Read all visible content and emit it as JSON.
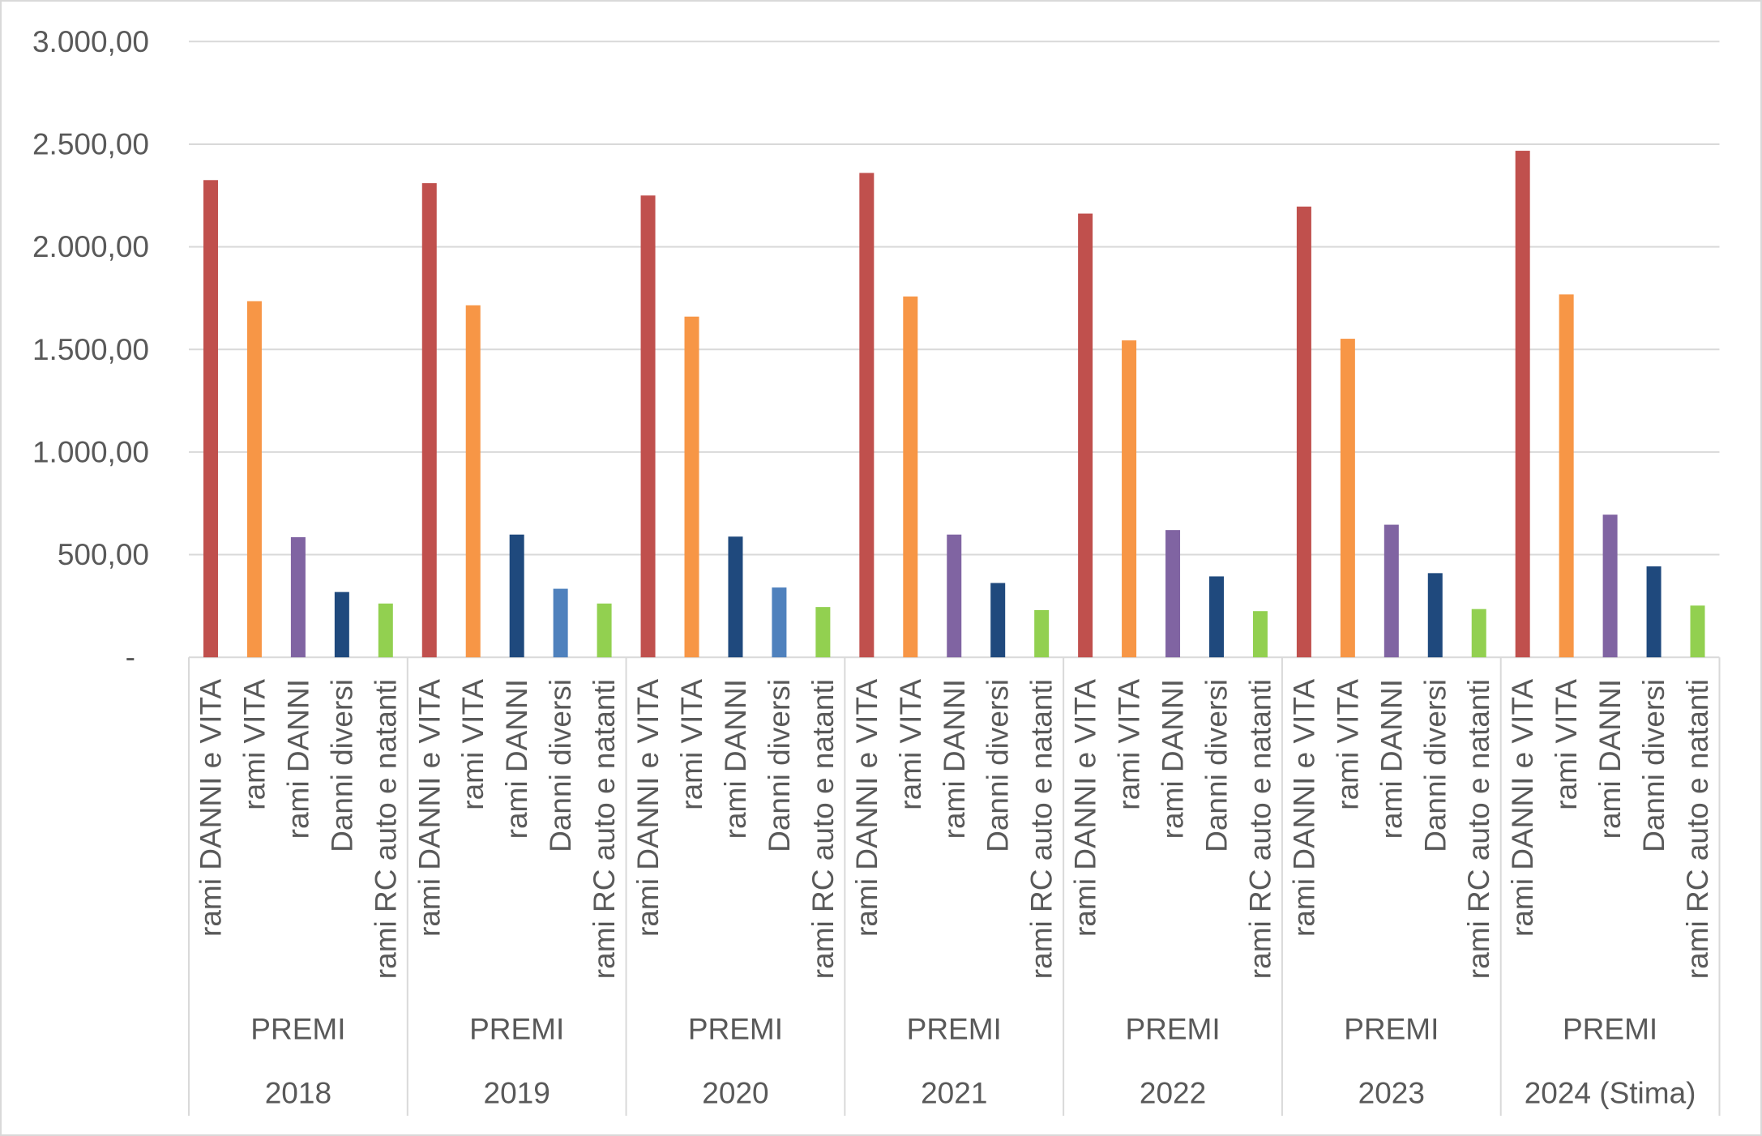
{
  "chart_data": {
    "type": "bar",
    "ylim": [
      0,
      3000
    ],
    "grid": true,
    "legend": "none",
    "y_ticks": [
      {
        "value": 0,
        "label": "-"
      },
      {
        "value": 500,
        "label": "500,00"
      },
      {
        "value": 1000,
        "label": "1.000,00"
      },
      {
        "value": 1500,
        "label": "1.500,00"
      },
      {
        "value": 2000,
        "label": "2.000,00"
      },
      {
        "value": 2500,
        "label": "2.500,00"
      },
      {
        "value": 3000,
        "label": "3.000,00"
      }
    ],
    "categories": [
      "rami DANNI e VITA",
      "rami VITA",
      "rami DANNI",
      "Danni diversi",
      "rami RC auto e natanti"
    ],
    "groups": [
      {
        "year": "2018",
        "label": "PREMI",
        "values": [
          2325,
          1735,
          585,
          318,
          262
        ],
        "colors": [
          "#C0504D",
          "#F79646",
          "#8064A2",
          "#1F497D",
          "#92D050"
        ]
      },
      {
        "year": "2019",
        "label": "PREMI",
        "values": [
          2310,
          1715,
          598,
          334,
          262
        ],
        "colors": [
          "#C0504D",
          "#F79646",
          "#1F497D",
          "#4F81BD",
          "#92D050"
        ]
      },
      {
        "year": "2020",
        "label": "PREMI",
        "values": [
          2250,
          1660,
          588,
          340,
          245
        ],
        "colors": [
          "#C0504D",
          "#F79646",
          "#1F497D",
          "#4F81BD",
          "#92D050"
        ]
      },
      {
        "year": "2021",
        "label": "PREMI",
        "values": [
          2360,
          1758,
          598,
          362,
          230
        ],
        "colors": [
          "#C0504D",
          "#F79646",
          "#8064A2",
          "#1F497D",
          "#92D050"
        ]
      },
      {
        "year": "2022",
        "label": "PREMI",
        "values": [
          2162,
          1544,
          620,
          394,
          225
        ],
        "colors": [
          "#C0504D",
          "#F79646",
          "#8064A2",
          "#1F497D",
          "#92D050"
        ]
      },
      {
        "year": "2023",
        "label": "PREMI",
        "values": [
          2196,
          1552,
          646,
          410,
          235
        ],
        "colors": [
          "#C0504D",
          "#F79646",
          "#8064A2",
          "#1F497D",
          "#92D050"
        ]
      },
      {
        "year": "2024 (Stima)",
        "label": "PREMI",
        "values": [
          2468,
          1768,
          695,
          443,
          252
        ],
        "colors": [
          "#C0504D",
          "#F79646",
          "#8064A2",
          "#1F497D",
          "#92D050"
        ]
      }
    ]
  },
  "colors": {
    "gridline": "#D9D9D9",
    "frame": "#D9D9D9",
    "text": "#595959"
  }
}
